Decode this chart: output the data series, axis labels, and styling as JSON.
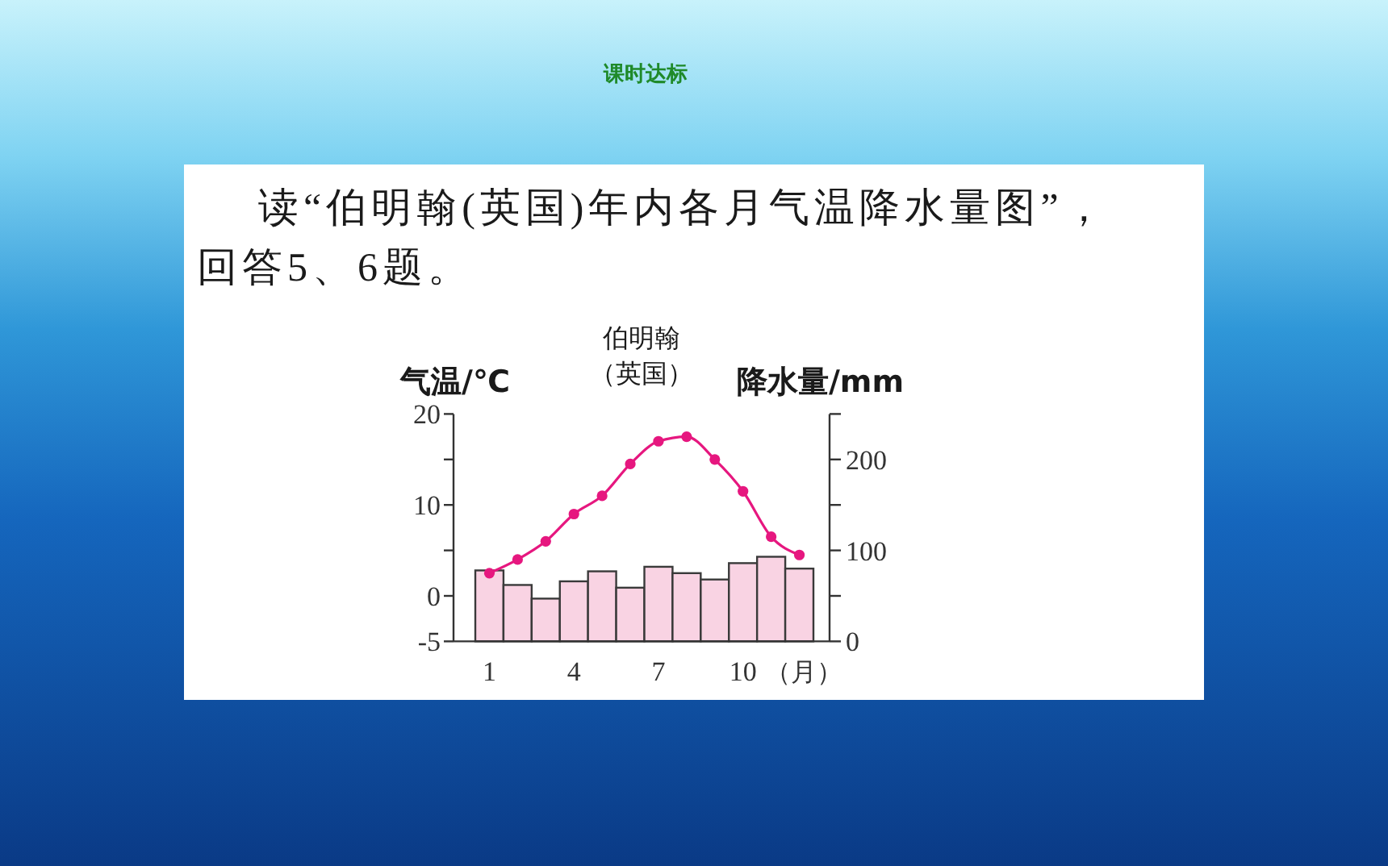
{
  "chart_data": {
    "type": "bar",
    "title": "伯明翰",
    "subtitle": "（英国）",
    "xlabel": "（月）",
    "ylabel": "气温/℃",
    "y2label": "降水量/mm",
    "annotations": [
      "课时达标",
      "读“伯明翰(英国)年内各月气温降水量图”，回答5、6题。"
    ],
    "categories": [
      "1",
      null,
      null,
      "4",
      null,
      null,
      "7",
      null,
      null,
      "10",
      null,
      null
    ],
    "series": [
      {
        "axis": "y2",
        "color": "#f9d3e3",
        "values": [
          78,
          62,
          47,
          66,
          77,
          59,
          82,
          75,
          68,
          86,
          93,
          80
        ]
      },
      {
        "type": "line",
        "color": "#e6177f",
        "values": [
          2.5,
          4,
          6,
          9,
          11,
          14.5,
          17,
          17.5,
          15,
          11.5,
          6.5,
          4.5
        ]
      }
    ],
    "ylim": [
      -5,
      20
    ],
    "yticks": [
      -5,
      0,
      {
        "value": 5,
        "label": null
      },
      10,
      {
        "value": 15,
        "label": null
      },
      20
    ],
    "y2lim": [
      0,
      250
    ],
    "y2ticks": [
      0,
      {
        "value": 50,
        "label": null
      },
      100,
      {
        "value": 150,
        "label": null
      },
      200,
      {
        "value": 250,
        "label": null
      }
    ],
    "marker": "circle",
    "line_style": "solid"
  }
}
